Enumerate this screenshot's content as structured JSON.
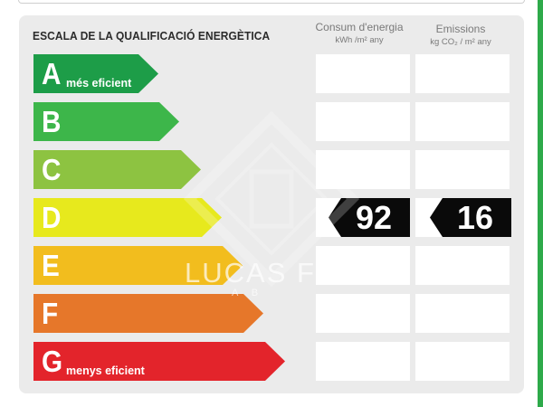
{
  "title": "ESCALA DE LA QUALIFICACIÓ ENERGÈTICA",
  "columns": {
    "consum": {
      "label": "Consum d'energia",
      "unit": "kWh /m² any"
    },
    "emissions": {
      "label": "Emissions",
      "unit": "kg CO₂ / m² any"
    }
  },
  "ratings": [
    {
      "letter": "A",
      "sublabel": "més eficient",
      "color": "#1d9d48"
    },
    {
      "letter": "B",
      "sublabel": "",
      "color": "#3db64a"
    },
    {
      "letter": "C",
      "sublabel": "",
      "color": "#8dc341"
    },
    {
      "letter": "D",
      "sublabel": "",
      "color": "#e7e91d"
    },
    {
      "letter": "E",
      "sublabel": "",
      "color": "#f2bd1e"
    },
    {
      "letter": "F",
      "sublabel": "",
      "color": "#e6772a"
    },
    {
      "letter": "G",
      "sublabel": "menys eficient",
      "color": "#e3242b"
    }
  ],
  "current": {
    "rating": "D",
    "consum_value": "92",
    "emissions_value": "16"
  },
  "watermark": {
    "brand": "LUCAS FOX",
    "sub": "A B",
    "logo_icon": "lf-diamond-logo"
  }
}
